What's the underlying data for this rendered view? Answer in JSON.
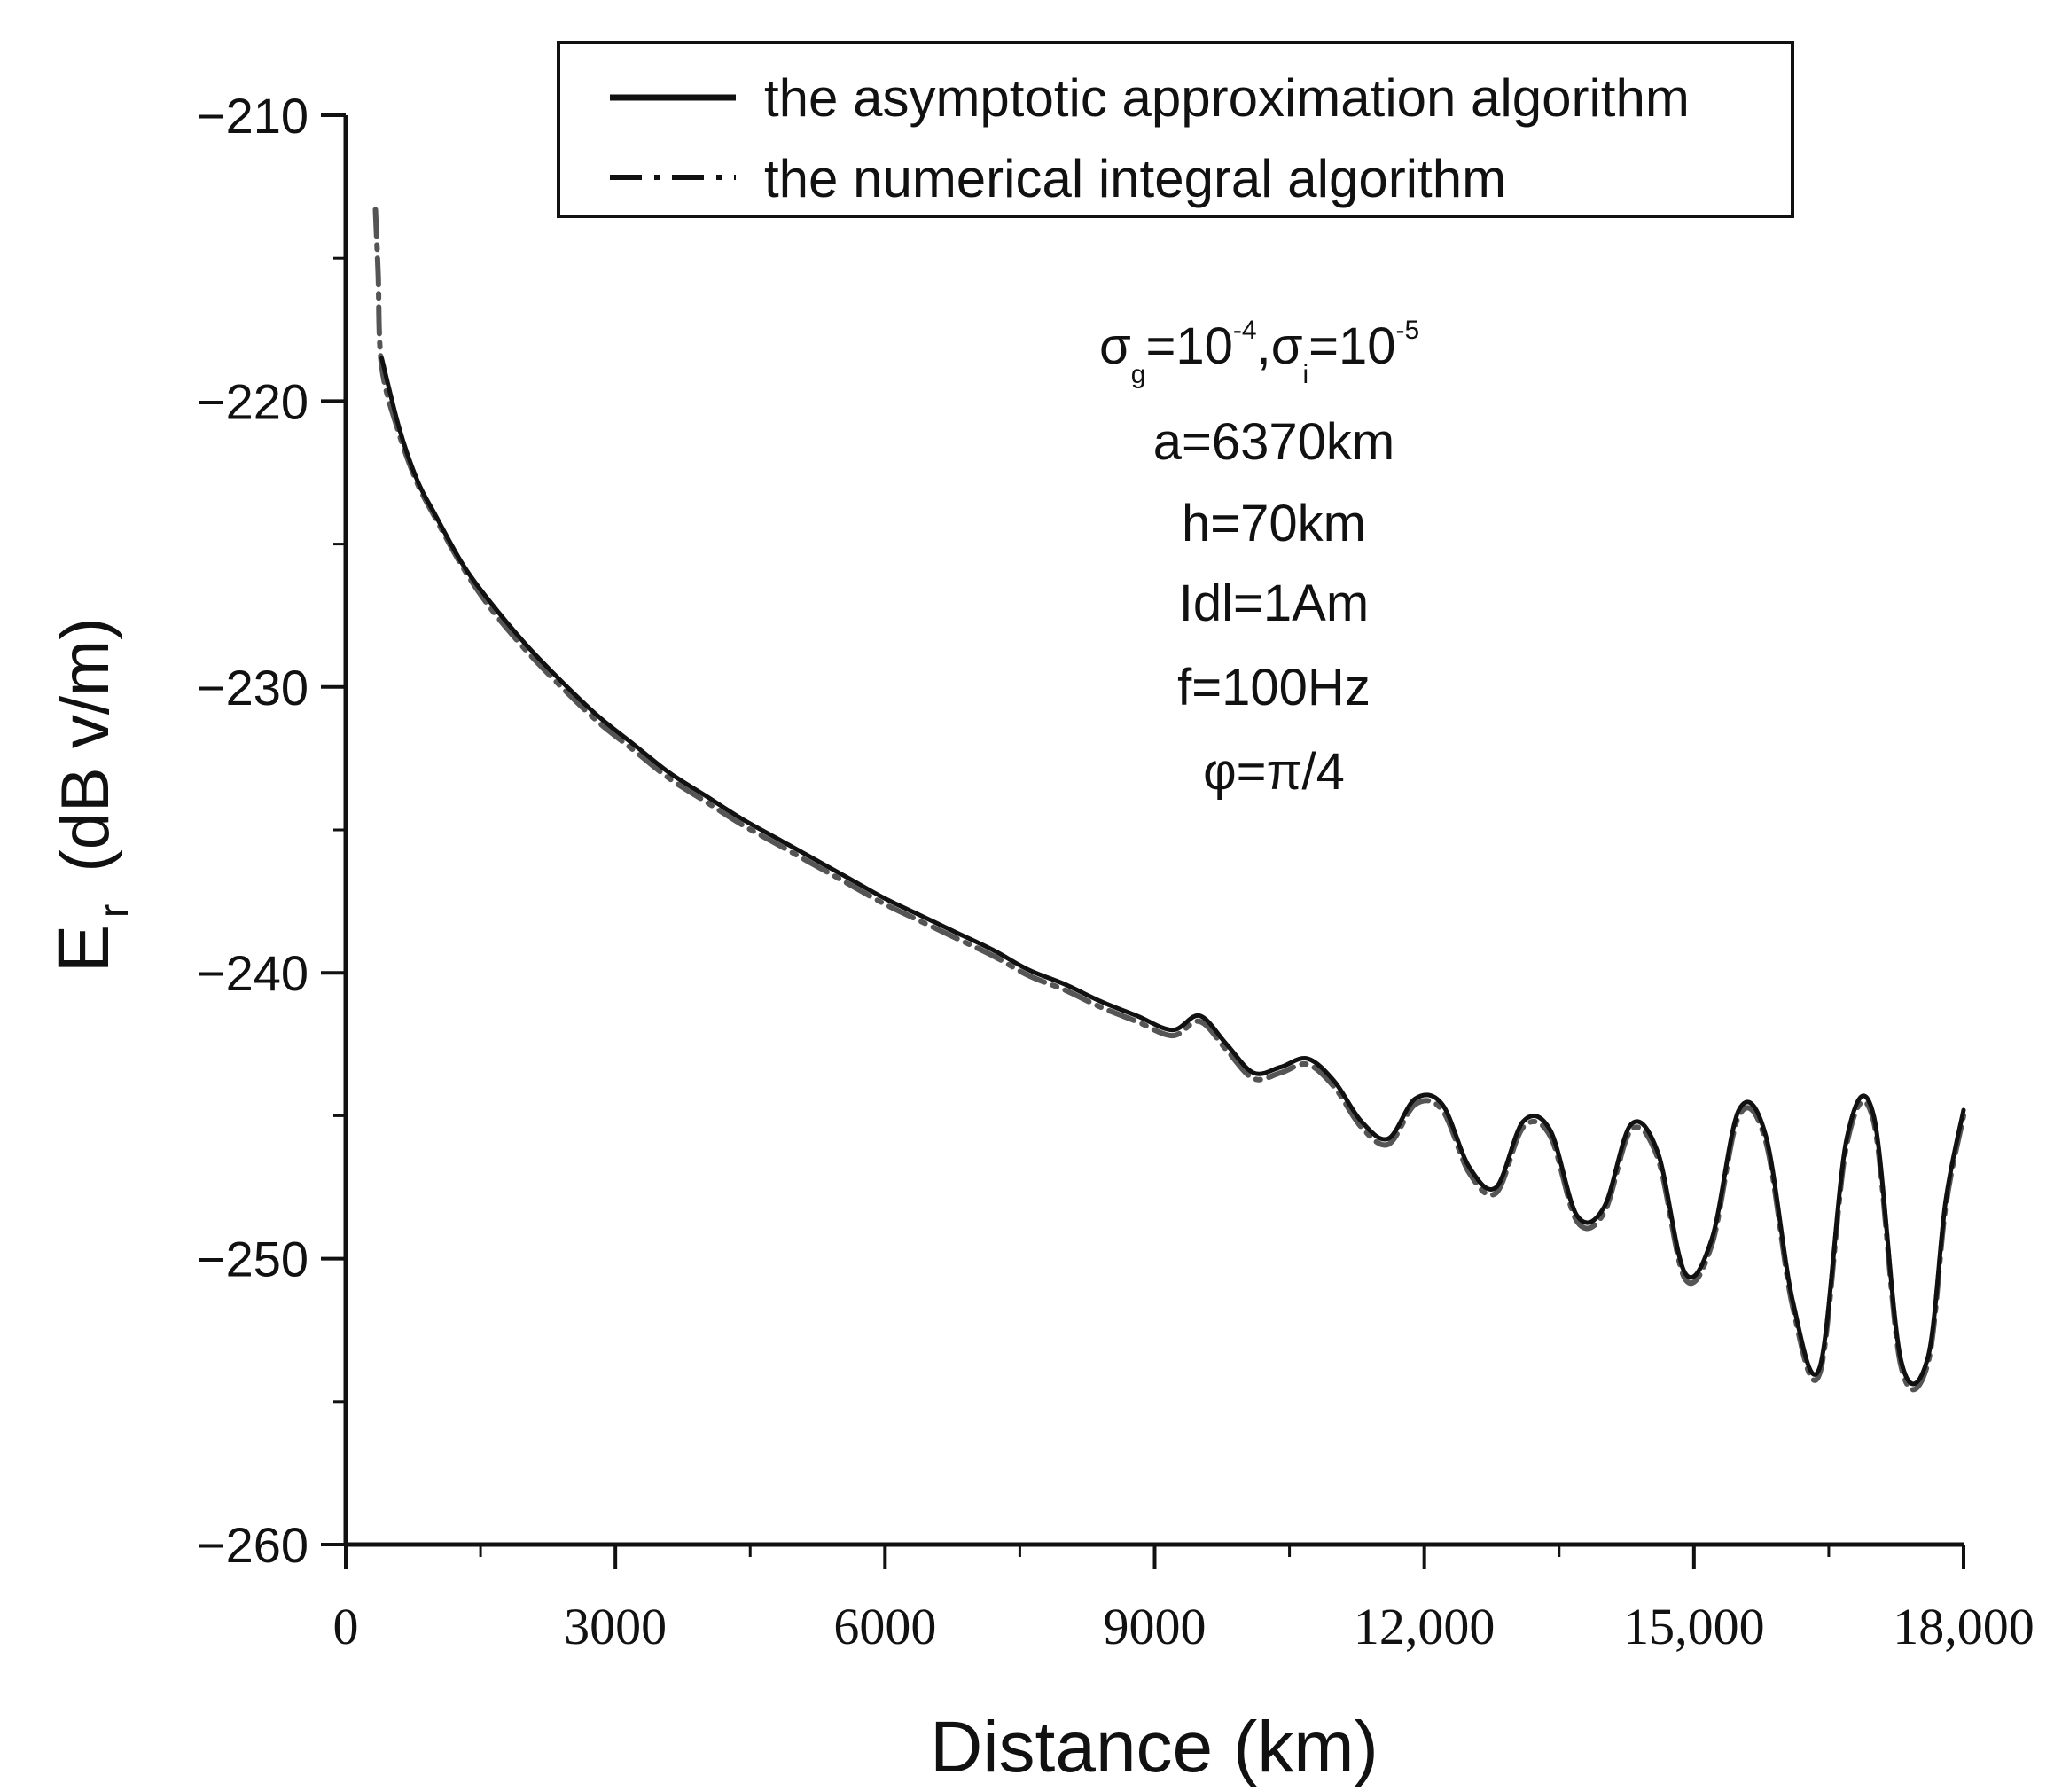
{
  "chart_data": {
    "type": "line",
    "title": "",
    "xlabel": "Distance  (km)",
    "ylabel": "E",
    "ylabel_sub": "r",
    "ylabel_units": "(dB  v/m)",
    "xlim": [
      0,
      18000
    ],
    "ylim": [
      -260,
      -210
    ],
    "x_ticks": [
      0,
      3000,
      6000,
      9000,
      12000,
      15000,
      18000
    ],
    "x_tick_labels": [
      "0",
      "3000",
      "6000",
      "9000",
      "12,000",
      "15,000",
      "18,000"
    ],
    "y_ticks": [
      -210,
      -220,
      -230,
      -240,
      -250,
      -260
    ],
    "y_tick_labels": [
      "−210",
      "−220",
      "−230",
      "−240",
      "−250",
      "−260"
    ],
    "legend_position": "top-right",
    "series": [
      {
        "name": "the asymptotic approximation algorithm",
        "style": "solid",
        "x": [
          400,
          600,
          800,
          1000,
          1300,
          1600,
          2000,
          2400,
          2800,
          3200,
          3600,
          4000,
          4400,
          4800,
          5200,
          5600,
          6000,
          6400,
          6800,
          7200,
          7600,
          8000,
          8400,
          8800,
          9200,
          9500,
          9800,
          10100,
          10400,
          10700,
          11000,
          11300,
          11600,
          11900,
          12200,
          12500,
          12800,
          13100,
          13400,
          13700,
          14000,
          14300,
          14600,
          14900,
          15200,
          15500,
          15800,
          16100,
          16400,
          16700,
          17000,
          17300,
          17600,
          17800,
          18000
        ],
        "y": [
          -218.5,
          -221.0,
          -222.8,
          -224.0,
          -225.7,
          -227.0,
          -228.5,
          -229.8,
          -231.0,
          -232.0,
          -233.0,
          -233.8,
          -234.6,
          -235.3,
          -236.0,
          -236.7,
          -237.4,
          -238.0,
          -238.6,
          -239.2,
          -239.9,
          -240.4,
          -241.0,
          -241.5,
          -242.0,
          -241.5,
          -242.5,
          -243.5,
          -243.3,
          -243.0,
          -243.8,
          -245.2,
          -245.8,
          -244.4,
          -244.6,
          -246.8,
          -247.5,
          -245.2,
          -245.5,
          -248.5,
          -248.2,
          -245.3,
          -246.3,
          -250.5,
          -249.3,
          -244.8,
          -245.7,
          -251.5,
          -253.8,
          -245.8,
          -245.0,
          -253.5,
          -253.5,
          -248.0,
          -244.8
        ]
      },
      {
        "name": "the numerical integral algorithm",
        "style": "dashdot",
        "x": [
          330,
          360,
          400,
          600,
          800,
          1000,
          1300,
          1600,
          2000,
          2400,
          2800,
          3200,
          3600,
          4000,
          4400,
          4800,
          5200,
          5600,
          6000,
          6400,
          6800,
          7200,
          7600,
          8000,
          8400,
          8800,
          9200,
          9500,
          9800,
          10100,
          10400,
          10700,
          11000,
          11300,
          11600,
          11900,
          12200,
          12500,
          12800,
          13100,
          13400,
          13700,
          14000,
          14300,
          14600,
          14900,
          15200,
          15500,
          15800,
          16100,
          16400,
          16700,
          17000,
          17300,
          17600,
          17800,
          18000
        ],
        "y": [
          -213.3,
          -215.5,
          -218.8,
          -221.2,
          -222.9,
          -224.1,
          -225.8,
          -227.2,
          -228.7,
          -230.0,
          -231.2,
          -232.2,
          -233.2,
          -234.0,
          -234.8,
          -235.5,
          -236.2,
          -236.9,
          -237.6,
          -238.2,
          -238.8,
          -239.4,
          -240.1,
          -240.6,
          -241.2,
          -241.7,
          -242.2,
          -241.7,
          -242.7,
          -243.7,
          -243.5,
          -243.2,
          -244.0,
          -245.4,
          -246.0,
          -244.6,
          -244.8,
          -247.0,
          -247.7,
          -245.4,
          -245.7,
          -248.7,
          -248.4,
          -245.5,
          -246.5,
          -250.7,
          -249.5,
          -245.0,
          -245.9,
          -251.7,
          -254.0,
          -246.0,
          -245.2,
          -253.7,
          -253.7,
          -248.2,
          -245.0
        ]
      }
    ],
    "annotations": {
      "sigma_line": {
        "sigma": "σ",
        "sub_g": "g",
        "exp_g": "-4",
        "sub_i": "i",
        "exp_i": "-5",
        "eq": "=10",
        "comma": ","
      },
      "lines": [
        "a=6370km",
        "h=70km",
        "Idl=1Am",
        "f=100Hz",
        "φ=π/4"
      ]
    }
  }
}
